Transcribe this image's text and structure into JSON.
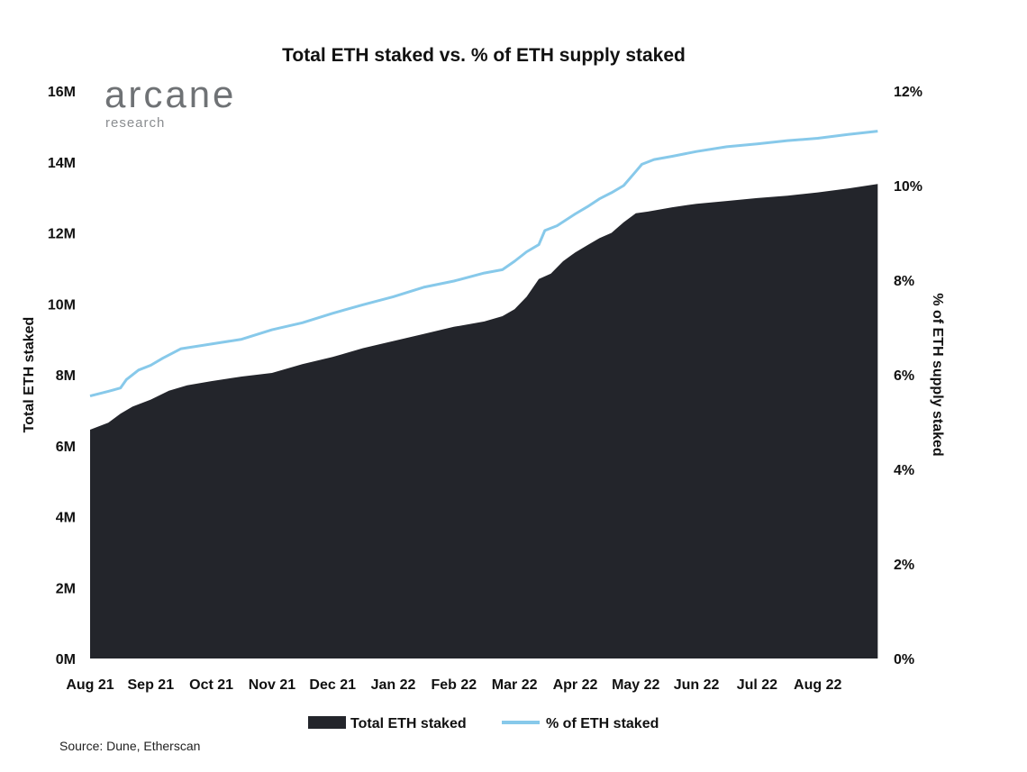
{
  "logo": {
    "word": "arcane",
    "sub": "research"
  },
  "source": "Source: Dune, Etherscan",
  "colors": {
    "area": "#23252b",
    "line": "#87c9ea"
  },
  "chart_data": {
    "type": "area",
    "title": "Total ETH staked vs. % of ETH supply staked",
    "ylabel": "Total ETH staked",
    "y2label": "% of ETH supply staked",
    "ylim": [
      0,
      16
    ],
    "y2lim": [
      0,
      12
    ],
    "yticks": [
      "0M",
      "2M",
      "4M",
      "6M",
      "8M",
      "10M",
      "12M",
      "14M",
      "16M"
    ],
    "y2ticks": [
      "0%",
      "2%",
      "4%",
      "6%",
      "8%",
      "10%",
      "12%"
    ],
    "categories": [
      "Aug 21",
      "Sep 21",
      "Oct 21",
      "Nov 21",
      "Dec 21",
      "Jan 22",
      "Feb 22",
      "Mar 22",
      "Apr 22",
      "May 22",
      "Jun 22",
      "Jul 22",
      "Aug 22"
    ],
    "legend": [
      "Total ETH staked",
      "% of ETH staked"
    ],
    "series": [
      {
        "name": "Total ETH staked",
        "unit": "M ETH",
        "axis": "left",
        "x": [
          0,
          0.3,
          0.5,
          0.7,
          1.0,
          1.3,
          1.6,
          2.0,
          2.5,
          3.0,
          3.5,
          4.0,
          4.5,
          5.0,
          5.5,
          6.0,
          6.5,
          6.8,
          7.0,
          7.2,
          7.4,
          7.6,
          7.8,
          8.0,
          8.2,
          8.4,
          8.6,
          8.8,
          9.0,
          9.2,
          9.6,
          10.0,
          10.5,
          11.0,
          11.5,
          12.0,
          12.5,
          12.99
        ],
        "values": [
          6.45,
          6.65,
          6.9,
          7.1,
          7.3,
          7.55,
          7.7,
          7.82,
          7.95,
          8.05,
          8.3,
          8.5,
          8.75,
          8.95,
          9.15,
          9.35,
          9.5,
          9.65,
          9.85,
          10.2,
          10.7,
          10.85,
          11.2,
          11.45,
          11.65,
          11.85,
          12.0,
          12.3,
          12.55,
          12.6,
          12.72,
          12.82,
          12.9,
          12.98,
          13.05,
          13.14,
          13.25,
          13.38
        ]
      },
      {
        "name": "% of ETH staked",
        "unit": "%",
        "axis": "right",
        "x": [
          0,
          0.3,
          0.5,
          0.6,
          0.8,
          1.0,
          1.2,
          1.5,
          2.0,
          2.5,
          3.0,
          3.5,
          4.0,
          4.5,
          5.0,
          5.5,
          6.0,
          6.5,
          6.8,
          7.0,
          7.2,
          7.4,
          7.5,
          7.7,
          8.0,
          8.2,
          8.4,
          8.6,
          8.8,
          9.0,
          9.1,
          9.3,
          9.6,
          10.0,
          10.5,
          11.0,
          11.5,
          12.0,
          12.5,
          12.99
        ],
        "values": [
          5.55,
          5.65,
          5.72,
          5.9,
          6.1,
          6.2,
          6.35,
          6.55,
          6.65,
          6.75,
          6.95,
          7.1,
          7.3,
          7.48,
          7.65,
          7.85,
          7.98,
          8.15,
          8.22,
          8.4,
          8.6,
          8.75,
          9.05,
          9.15,
          9.4,
          9.55,
          9.72,
          9.85,
          10.0,
          10.3,
          10.45,
          10.55,
          10.62,
          10.72,
          10.82,
          10.88,
          10.95,
          11.0,
          11.08,
          11.15
        ]
      }
    ],
    "grid": false,
    "legend_position": "bottom-center"
  }
}
